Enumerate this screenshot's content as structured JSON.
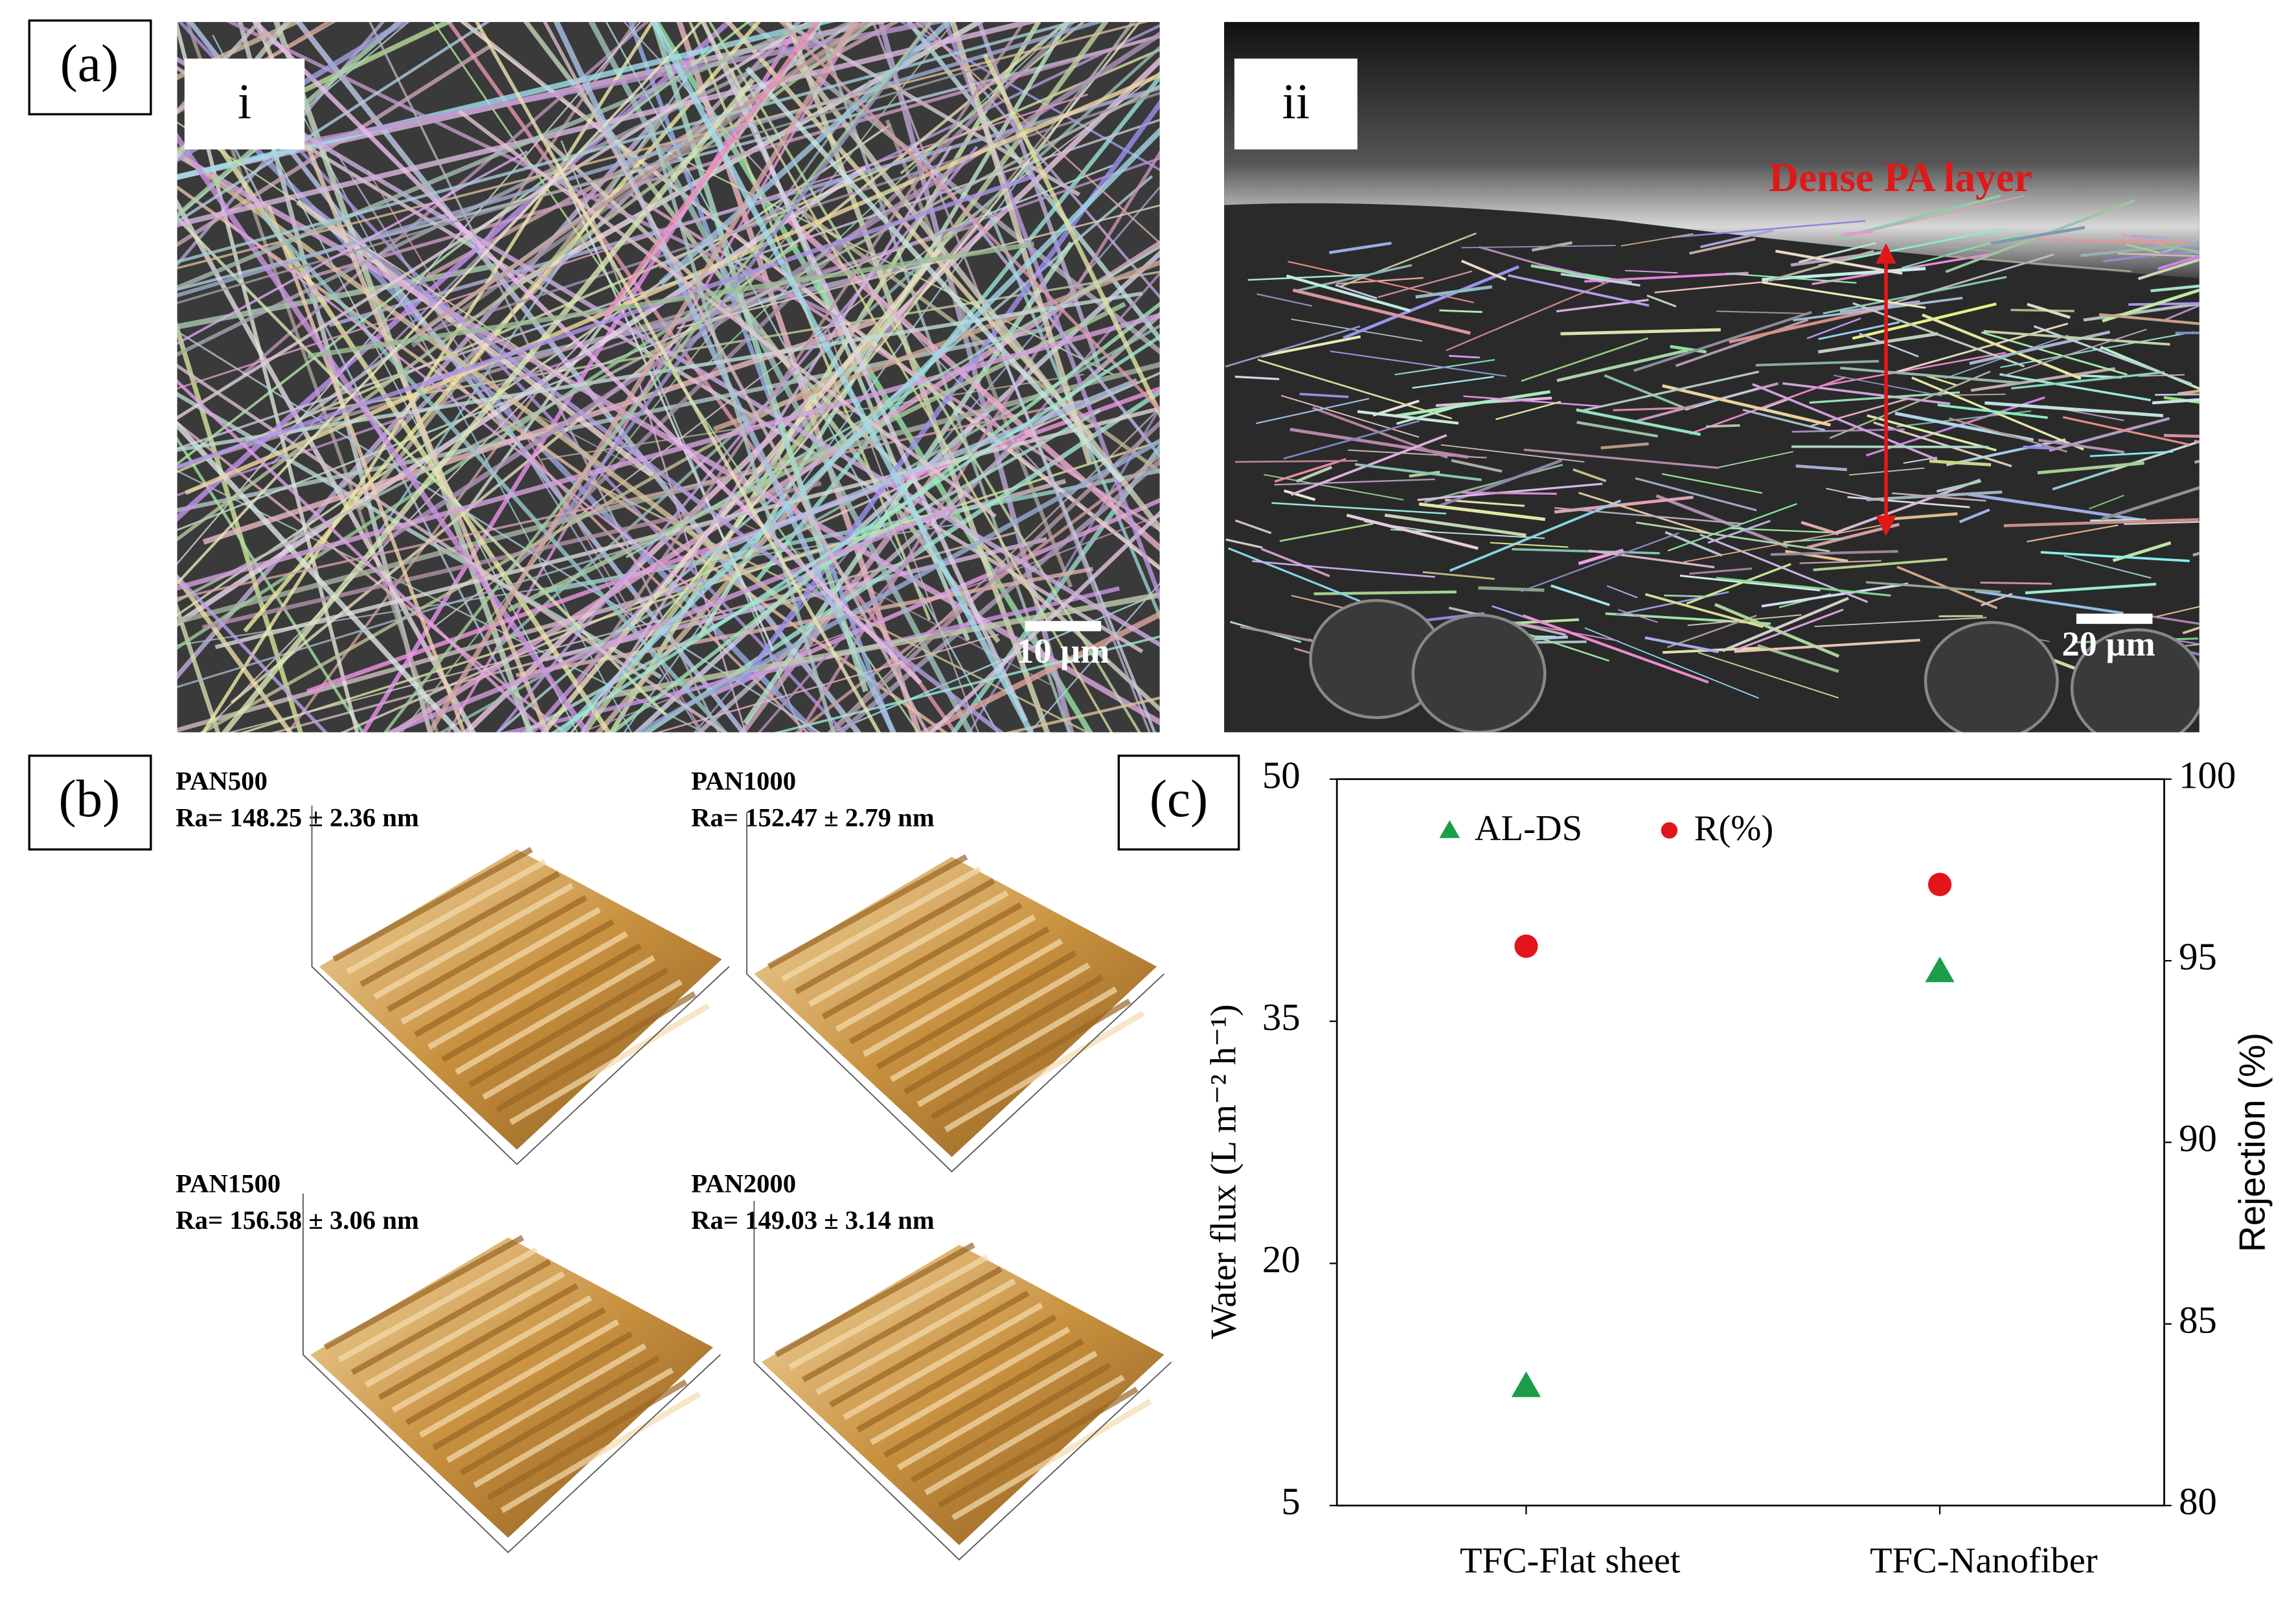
{
  "panel_a": {
    "label": "(a)",
    "images": [
      {
        "label": "i",
        "scale_bar": "10 µm"
      },
      {
        "label": "ii",
        "scale_bar": "20 µm",
        "annotation": "Dense PA layer"
      }
    ]
  },
  "panel_b": {
    "label": "(b)",
    "samples": [
      {
        "name": "PAN500",
        "roughness": "Ra= 148.25 ± 2.36 nm"
      },
      {
        "name": "PAN1000",
        "roughness": "Ra= 152.47 ± 2.79 nm"
      },
      {
        "name": "PAN1500",
        "roughness": "Ra= 156.58 ± 3.06 nm"
      },
      {
        "name": "PAN2000",
        "roughness": "Ra= 149.03 ± 3.14 nm"
      }
    ]
  },
  "chart_data": {
    "label": "(c)",
    "type": "scatter",
    "categories": [
      "TFC-Flat sheet",
      "TFC-Nanofiber"
    ],
    "series": [
      {
        "name": "AL-DS",
        "color": "#1a9e4a",
        "marker": "triangle",
        "values": [
          12.4,
          38.1
        ]
      },
      {
        "name": "R(%)",
        "color": "#e3141b",
        "marker": "circle",
        "axis": "y2",
        "values": [
          95.4,
          97.1
        ]
      }
    ],
    "ylabel": "Water flux (L m⁻² h⁻¹)",
    "y2label": "Rejection (%)",
    "ylim": [
      5,
      50
    ],
    "yticks": [
      5,
      20,
      35,
      50
    ],
    "y2lim": [
      80,
      100
    ],
    "y2ticks": [
      80,
      85,
      90,
      95,
      100
    ],
    "grid": false
  }
}
